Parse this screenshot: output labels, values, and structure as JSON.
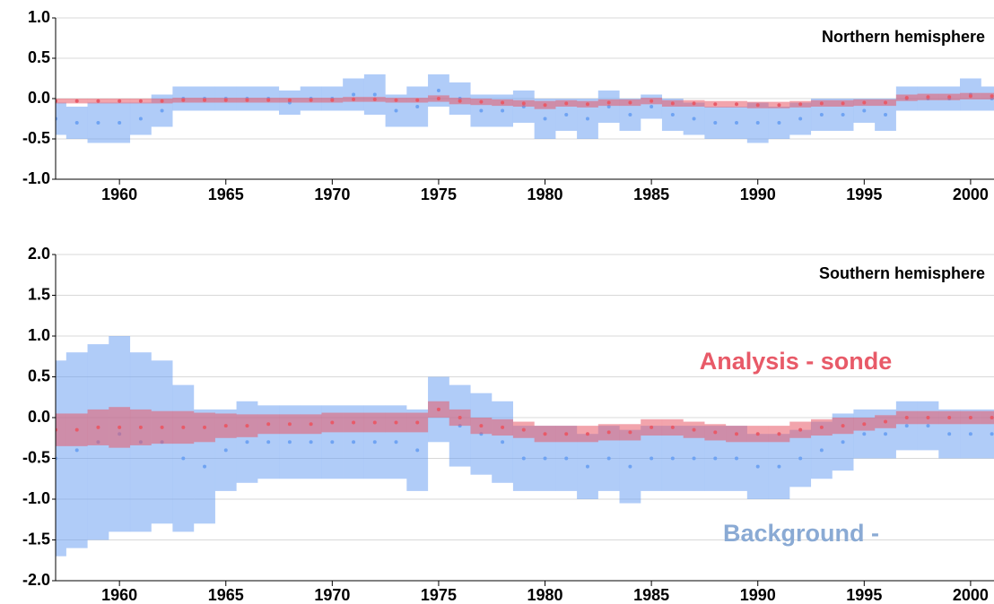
{
  "chart_data": [
    {
      "type": "scatter",
      "title": "Northern hemisphere",
      "x": [
        1957,
        1958,
        1959,
        1960,
        1961,
        1962,
        1963,
        1964,
        1965,
        1966,
        1967,
        1968,
        1969,
        1970,
        1971,
        1972,
        1973,
        1974,
        1975,
        1976,
        1977,
        1978,
        1979,
        1980,
        1981,
        1982,
        1983,
        1984,
        1985,
        1986,
        1987,
        1988,
        1989,
        1990,
        1991,
        1992,
        1993,
        1994,
        1995,
        1996,
        1997,
        1998,
        1999,
        2000,
        2001
      ],
      "series": [
        {
          "color": "#6fa3f2",
          "values": [
            -0.25,
            -0.3,
            -0.3,
            -0.3,
            -0.25,
            -0.15,
            0.0,
            0.0,
            0.0,
            0.0,
            0.0,
            -0.05,
            0.0,
            0.0,
            0.05,
            0.05,
            -0.15,
            -0.1,
            0.1,
            0.0,
            -0.15,
            -0.15,
            -0.1,
            -0.25,
            -0.2,
            -0.25,
            -0.1,
            -0.2,
            -0.1,
            -0.2,
            -0.25,
            -0.3,
            -0.3,
            -0.3,
            -0.3,
            -0.25,
            -0.2,
            -0.2,
            -0.15,
            -0.2,
            0.0,
            0.0,
            0.0,
            0.05,
            0.0
          ],
          "errors": [
            0.2,
            0.2,
            0.25,
            0.25,
            0.2,
            0.2,
            0.15,
            0.15,
            0.15,
            0.15,
            0.15,
            0.15,
            0.15,
            0.15,
            0.2,
            0.25,
            0.2,
            0.25,
            0.2,
            0.2,
            0.2,
            0.2,
            0.2,
            0.25,
            0.2,
            0.25,
            0.2,
            0.2,
            0.15,
            0.2,
            0.2,
            0.2,
            0.2,
            0.25,
            0.2,
            0.2,
            0.2,
            0.2,
            0.15,
            0.2,
            0.15,
            0.15,
            0.15,
            0.2,
            0.15
          ]
        },
        {
          "color": "#e85a68",
          "values": [
            -0.03,
            -0.03,
            -0.03,
            -0.03,
            -0.03,
            -0.03,
            -0.02,
            -0.02,
            -0.02,
            -0.02,
            -0.02,
            -0.02,
            -0.02,
            -0.02,
            -0.01,
            -0.01,
            -0.02,
            -0.02,
            0.0,
            -0.03,
            -0.04,
            -0.05,
            -0.06,
            -0.08,
            -0.06,
            -0.07,
            -0.05,
            -0.05,
            -0.03,
            -0.06,
            -0.06,
            -0.07,
            -0.07,
            -0.08,
            -0.08,
            -0.07,
            -0.06,
            -0.06,
            -0.05,
            -0.05,
            0.01,
            0.02,
            0.02,
            0.03,
            0.03
          ],
          "errors": [
            0.03,
            0.03,
            0.03,
            0.03,
            0.03,
            0.03,
            0.03,
            0.03,
            0.03,
            0.03,
            0.03,
            0.03,
            0.03,
            0.03,
            0.03,
            0.03,
            0.03,
            0.03,
            0.04,
            0.04,
            0.04,
            0.04,
            0.04,
            0.05,
            0.04,
            0.04,
            0.04,
            0.04,
            0.04,
            0.04,
            0.04,
            0.04,
            0.04,
            0.04,
            0.04,
            0.04,
            0.04,
            0.04,
            0.04,
            0.04,
            0.04,
            0.04,
            0.04,
            0.04,
            0.04
          ]
        }
      ],
      "xlim": [
        1957,
        2001.1
      ],
      "ylim": [
        -1,
        1
      ],
      "xticks": [
        1960,
        1965,
        1970,
        1975,
        1980,
        1985,
        1990,
        1995,
        2000
      ],
      "yticks": [
        {
          "value": -1,
          "label": "-1.0"
        },
        -0.5,
        {
          "value": 0,
          "label": "0.0"
        },
        0.5,
        {
          "value": 1,
          "label": "1.0"
        }
      ],
      "grid": true
    },
    {
      "type": "scatter",
      "title": "Southern hemisphere",
      "x": [
        1957,
        1958,
        1959,
        1960,
        1961,
        1962,
        1963,
        1964,
        1965,
        1966,
        1967,
        1968,
        1969,
        1970,
        1971,
        1972,
        1973,
        1974,
        1975,
        1976,
        1977,
        1978,
        1979,
        1980,
        1981,
        1982,
        1983,
        1984,
        1985,
        1986,
        1987,
        1988,
        1989,
        1990,
        1991,
        1992,
        1993,
        1994,
        1995,
        1996,
        1997,
        1998,
        1999,
        2000,
        2001
      ],
      "series": [
        {
          "name": "Background -",
          "color": "#6fa3f2",
          "values": [
            -0.5,
            -0.4,
            -0.3,
            -0.2,
            -0.3,
            -0.3,
            -0.5,
            -0.6,
            -0.4,
            -0.3,
            -0.3,
            -0.3,
            -0.3,
            -0.3,
            -0.3,
            -0.3,
            -0.3,
            -0.4,
            0.1,
            -0.1,
            -0.2,
            -0.3,
            -0.5,
            -0.5,
            -0.5,
            -0.6,
            -0.5,
            -0.6,
            -0.5,
            -0.5,
            -0.5,
            -0.5,
            -0.5,
            -0.6,
            -0.6,
            -0.5,
            -0.4,
            -0.3,
            -0.2,
            -0.2,
            -0.1,
            -0.1,
            -0.2,
            -0.2,
            -0.2
          ],
          "errors": [
            1.2,
            1.2,
            1.2,
            1.2,
            1.1,
            1.0,
            0.9,
            0.7,
            0.5,
            0.5,
            0.45,
            0.45,
            0.45,
            0.45,
            0.45,
            0.45,
            0.45,
            0.5,
            0.4,
            0.5,
            0.5,
            0.5,
            0.4,
            0.4,
            0.4,
            0.4,
            0.4,
            0.45,
            0.4,
            0.4,
            0.4,
            0.4,
            0.4,
            0.4,
            0.4,
            0.35,
            0.35,
            0.35,
            0.3,
            0.3,
            0.3,
            0.3,
            0.3,
            0.3,
            0.3
          ]
        },
        {
          "name": "Analysis - sonde",
          "color": "#e85a68",
          "values": [
            -0.15,
            -0.15,
            -0.12,
            -0.12,
            -0.12,
            -0.12,
            -0.12,
            -0.12,
            -0.1,
            -0.1,
            -0.08,
            -0.08,
            -0.08,
            -0.06,
            -0.06,
            -0.06,
            -0.06,
            -0.06,
            0.1,
            0.0,
            -0.1,
            -0.12,
            -0.15,
            -0.2,
            -0.2,
            -0.2,
            -0.18,
            -0.18,
            -0.12,
            -0.12,
            -0.15,
            -0.18,
            -0.2,
            -0.2,
            -0.2,
            -0.15,
            -0.12,
            -0.1,
            -0.08,
            -0.05,
            0.0,
            0.0,
            0.0,
            0.0,
            0.0
          ],
          "errors": [
            0.2,
            0.2,
            0.22,
            0.25,
            0.22,
            0.2,
            0.2,
            0.18,
            0.15,
            0.14,
            0.12,
            0.12,
            0.12,
            0.12,
            0.12,
            0.12,
            0.12,
            0.12,
            0.1,
            0.1,
            0.1,
            0.1,
            0.1,
            0.1,
            0.1,
            0.1,
            0.1,
            0.1,
            0.1,
            0.1,
            0.1,
            0.1,
            0.1,
            0.1,
            0.1,
            0.1,
            0.1,
            0.1,
            0.08,
            0.08,
            0.08,
            0.08,
            0.08,
            0.08,
            0.08
          ]
        }
      ],
      "xlim": [
        1957,
        2001.1
      ],
      "ylim": [
        -2,
        2
      ],
      "xticks": [
        1960,
        1965,
        1970,
        1975,
        1980,
        1985,
        1990,
        1995,
        2000
      ],
      "yticks": [
        {
          "value": -2,
          "label": "-2.0"
        },
        -1.5,
        {
          "value": -1,
          "label": "-1.0"
        },
        -0.5,
        {
          "value": 0,
          "label": "0.0"
        },
        0.5,
        {
          "value": 1,
          "label": "1.0"
        },
        1.5,
        {
          "value": 2,
          "label": "2.0"
        }
      ],
      "grid": true
    }
  ]
}
